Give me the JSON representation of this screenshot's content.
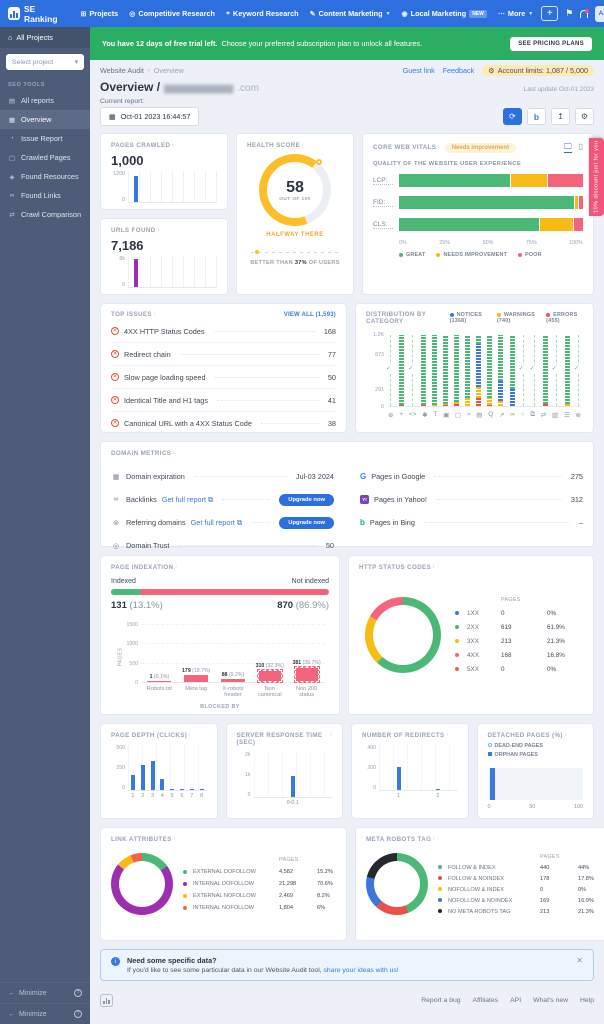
{
  "colors": {
    "green": "#4bb878",
    "yellow": "#f7bb17",
    "red": "#f4647d",
    "error": "#e8504a",
    "blue": "#3a78dd",
    "purple": "#9c2fb0",
    "orange": "#f06543",
    "black": "#25282e",
    "lightblue": "#7db4f0",
    "gauge_yellow": "#fdbe2a",
    "gray_track": "#ebeef2"
  },
  "navbar": {
    "brand": "SE Ranking",
    "items": [
      {
        "label": "Projects",
        "icon": "projects-icon",
        "glyph": "⊞"
      },
      {
        "label": "Competitive Research",
        "icon": "competitive-research-icon",
        "glyph": "◎"
      },
      {
        "label": "Keyword Research",
        "icon": "keyword-research-icon",
        "glyph": "⌖"
      },
      {
        "label": "Content Marketing",
        "icon": "content-marketing-icon",
        "glyph": "✎",
        "chevron": true
      },
      {
        "label": "Local Marketing",
        "icon": "local-marketing-icon",
        "glyph": "◉",
        "badge": "NEW"
      },
      {
        "label": "More",
        "icon": "more-icon",
        "glyph": "⋯",
        "chevron": true
      }
    ],
    "add_button": "+",
    "avatar": "AA"
  },
  "trial_banner": {
    "bold": "You have 12 days of free trial left.",
    "text": "Choose your preferred subscription plan to unlock all features.",
    "button": "SEE PRICING PLANS"
  },
  "sidebar": {
    "all_projects": "All Projects",
    "select_placeholder": "Select project",
    "section_title": "SEO TOOLS",
    "items": [
      {
        "label": "All reports",
        "glyph": "▤",
        "active": false
      },
      {
        "label": "Overview",
        "glyph": "▦",
        "active": true
      },
      {
        "label": "Issue Report",
        "glyph": "◔",
        "active": false
      },
      {
        "label": "Crawled Pages",
        "glyph": "▢",
        "active": false
      },
      {
        "label": "Found Resources",
        "glyph": "◈",
        "active": false
      },
      {
        "label": "Found Links",
        "glyph": "∞",
        "active": false
      },
      {
        "label": "Crawl Comparison",
        "glyph": "⇄",
        "active": false
      }
    ],
    "minimize_rows": [
      "Minimize",
      "Minimize"
    ]
  },
  "page": {
    "breadcrumb_parent": "Website Audit",
    "breadcrumb_current": "Overview",
    "guest_link": "Guest link",
    "feedback": "Feedback",
    "account_limits": "Account limits: 1,087 / 5,000",
    "title": "Overview /",
    "domain_masked": "▆▆▆▆▆▆▆▆▆",
    "domain_suffix": ".com",
    "last_update": "Last update Oct-01 2023",
    "current_report_label": "Current report:",
    "report_date": "Oct-01 2023 16:44:57"
  },
  "ribbon_text": "10% discount just for you",
  "cards": {
    "pages_crawled": {
      "title": "PAGES CRAWLED",
      "value": "1,000",
      "y_max": "1200",
      "y_min": "0",
      "bar_pct": 83,
      "bar_color": "blue"
    },
    "urls_found": {
      "title": "URLS FOUND",
      "value": "7,186",
      "y_max": "8k",
      "y_min": "0",
      "bar_pct": 90,
      "bar_color": "purple"
    },
    "health_score": {
      "title": "HEALTH SCORE",
      "score": "58",
      "out_of": "OUT OF 100",
      "status": "HALFWAY THERE",
      "note_pre": "BETTER THAN",
      "note_pct": "37%",
      "note_post": "OF USERS",
      "gauge_fill_pct": 66
    },
    "core_web_vitals": {
      "title": "CORE WEB VITALS",
      "badge": "Needs improvement",
      "subtitle": "QUALITY OF THE WEBSITE USER EXPERIENCE",
      "metrics": [
        {
          "label": "LCP:",
          "great": 61,
          "needs_improvement": 20,
          "poor": 19
        },
        {
          "label": "FID:",
          "great": 96,
          "needs_improvement": 2,
          "poor": 2
        },
        {
          "label": "CLS:",
          "great": 77,
          "needs_improvement": 18,
          "poor": 5
        }
      ],
      "x_ticks": [
        "0%",
        "25%",
        "50%",
        "75%",
        "100%"
      ],
      "legend": [
        {
          "label": "GREAT",
          "color": "green"
        },
        {
          "label": "NEEDS IMPROVEMENT",
          "color": "yellow"
        },
        {
          "label": "POOR",
          "color": "red"
        }
      ]
    },
    "top_issues": {
      "title": "TOP ISSUES",
      "view_all": "VIEW ALL (1,593)",
      "items": [
        {
          "name": "4XX HTTP Status Codes",
          "count": "168"
        },
        {
          "name": "Redirect chain",
          "count": "77"
        },
        {
          "name": "Slow page loading speed",
          "count": "50"
        },
        {
          "name": "Identical Title and H1 tags",
          "count": "41"
        },
        {
          "name": "Canonical URL with a 4XX Status Code",
          "count": "38"
        }
      ]
    },
    "distribution": {
      "title": "DISTRIBUTION BY CATEGORY",
      "legend": [
        {
          "label": "NOTICES (1368)",
          "color": "blue"
        },
        {
          "label": "WARNINGS (740)",
          "color": "yellow"
        },
        {
          "label": "ERRORS (455)",
          "color": "error"
        }
      ],
      "y_max": 1200,
      "y_ticks": [
        {
          "label": "1.2K",
          "v": 1200
        },
        {
          "label": "873",
          "v": 873
        },
        {
          "label": "291",
          "v": 291
        },
        {
          "label": "0",
          "v": 0
        }
      ],
      "bars": [
        {
          "check": true
        },
        {
          "segments": [
            [
              "error",
              25
            ],
            [
              "green",
              1175
            ]
          ]
        },
        {
          "check": true
        },
        {
          "segments": [
            [
              "error",
              25
            ],
            [
              "green",
              1175
            ]
          ]
        },
        {
          "segments": [
            [
              "yellow",
              25
            ],
            [
              "green",
              1175
            ]
          ]
        },
        {
          "segments": [
            [
              "error",
              20
            ],
            [
              "yellow",
              20
            ],
            [
              "green",
              1160
            ]
          ]
        },
        {
          "segments": [
            [
              "error",
              30
            ],
            [
              "yellow",
              40
            ],
            [
              "green",
              1130
            ]
          ]
        },
        {
          "segments": [
            [
              "yellow",
              130
            ],
            [
              "green",
              1070
            ]
          ]
        },
        {
          "segments": [
            [
              "error",
              140
            ],
            [
              "yellow",
              180
            ],
            [
              "blue",
              730
            ],
            [
              "green",
              150
            ]
          ]
        },
        {
          "segments": [
            [
              "error",
              25
            ],
            [
              "yellow",
              110
            ],
            [
              "green",
              1065
            ]
          ]
        },
        {
          "segments": [
            [
              "yellow",
              90
            ],
            [
              "blue",
              330
            ],
            [
              "green",
              780
            ]
          ]
        },
        {
          "segments": [
            [
              "blue",
              280
            ],
            [
              "green",
              920
            ]
          ]
        },
        {
          "check": true
        },
        {
          "check": true
        },
        {
          "segments": [
            [
              "error",
              40
            ],
            [
              "green",
              1160
            ]
          ]
        },
        {
          "check": true
        },
        {
          "segments": [
            [
              "yellow",
              30
            ],
            [
              "green",
              1170
            ]
          ]
        },
        {
          "check": true
        }
      ],
      "icons": [
        "⊕",
        "+",
        "<>",
        "✱",
        "T",
        "▣",
        "▢",
        "≈",
        "▤",
        "Q",
        "↗",
        "∞",
        "○",
        "⧉",
        "⇄",
        "▥",
        "☰",
        "⊗"
      ]
    },
    "domain_metrics": {
      "title": "DOMAIN METRICS",
      "left": [
        {
          "icon": "calendar-icon",
          "glyph": "▦",
          "label": "Domain expiration",
          "value": "Jul-03 2024"
        },
        {
          "icon": "backlinks-icon",
          "glyph": "∞",
          "label": "Backlinks",
          "link": "Get full report",
          "button": "Upgrade now"
        },
        {
          "icon": "referring-domains-icon",
          "glyph": "⊚",
          "label": "Referring domains",
          "link": "Get full report",
          "button": "Upgrade now"
        },
        {
          "icon": "domain-trust-icon",
          "glyph": "◎",
          "label": "Domain Trust",
          "value": "50"
        }
      ],
      "right": [
        {
          "icon": "google-icon",
          "glyph": "G",
          "cls": "g-google",
          "label": "Pages in Google",
          "value": "275"
        },
        {
          "icon": "yahoo-icon",
          "glyph": "Y!",
          "cls": "g-yahoo",
          "label": "Pages in Yahoo!",
          "value": "312"
        },
        {
          "icon": "bing-icon",
          "glyph": "b",
          "cls": "g-bing",
          "label": "Pages in Bing",
          "value": "–"
        }
      ]
    },
    "page_indexation": {
      "title": "PAGE INDEXATION",
      "indexed_label": "Indexed",
      "not_indexed_label": "Not indexed",
      "indexed_value": "131",
      "indexed_pct": "(13.1%)",
      "not_indexed_value": "870",
      "not_indexed_pct": "(86.9%)",
      "indexed_bar_pct": 13.1,
      "ylabel": "PAGES",
      "xlabel": "BLOCKED BY",
      "y_max": 1500,
      "y_ticks": [
        {
          "label": "1500",
          "v": 1500
        },
        {
          "label": "1000",
          "v": 1000
        },
        {
          "label": "500",
          "v": 500
        },
        {
          "label": "0",
          "v": 0
        }
      ],
      "bars": [
        {
          "label": "Robots.txt",
          "value": 1,
          "ann_bold": "1",
          "ann": "(0.1%)",
          "dashed": false
        },
        {
          "label": "Meta tag",
          "value": 179,
          "ann_bold": "179",
          "ann": "(18.7%)",
          "dashed": false
        },
        {
          "label": "X-robots header",
          "value": 88,
          "ann_bold": "88",
          "ann": "(9.2%)",
          "dashed": false
        },
        {
          "label": "Non canonical",
          "value": 310,
          "ann_bold": "310",
          "ann": "(32.3%)",
          "dashed": true
        },
        {
          "label": "Non 200 status",
          "value": 381,
          "ann_bold": "381",
          "ann": "(39.7%)",
          "dashed": true
        }
      ]
    },
    "http_status_codes": {
      "title": "HTTP STATUS CODES",
      "col_header": "PAGES",
      "rows": [
        {
          "label": "1XX",
          "color": "blue",
          "pages": "0",
          "pct": "0%",
          "value": 0
        },
        {
          "label": "2XX",
          "color": "green",
          "pages": "619",
          "pct": "61.9%",
          "value": 61.9
        },
        {
          "label": "3XX",
          "color": "yellow",
          "pages": "213",
          "pct": "21.3%",
          "value": 21.3
        },
        {
          "label": "4XX",
          "color": "red",
          "pages": "168",
          "pct": "16.8%",
          "value": 16.8
        },
        {
          "label": "5XX",
          "color": "orange",
          "pages": "0",
          "pct": "0%",
          "value": 0
        }
      ]
    },
    "page_depth": {
      "title": "PAGE DEPTH (CLICKS)",
      "y_ticks": [
        "500",
        "250",
        "0"
      ],
      "y_max": 500,
      "x_labels": [
        "1",
        "2",
        "3",
        "4",
        "5",
        "6",
        "7",
        "8"
      ],
      "values": [
        175,
        280,
        330,
        130,
        12,
        8,
        6,
        5
      ]
    },
    "server_response": {
      "title": "SERVER RESPONSE TIME (SEC)",
      "y_ticks": [
        "2k",
        "1k",
        "0"
      ],
      "y_max": 2000,
      "x_labels": [
        "0-0.1"
      ],
      "values": [
        950
      ]
    },
    "redirects": {
      "title": "NUMBER OF REDIRECTS",
      "y_ticks": [
        "400",
        "200",
        "0"
      ],
      "y_max": 400,
      "x_labels": [
        "1",
        "2"
      ],
      "values": [
        210,
        8
      ]
    },
    "detached_pages": {
      "title": "DETACHED PAGES (%)",
      "legend": [
        {
          "label": "DEAD-END PAGES",
          "style": "ring"
        },
        {
          "label": "ORPHAN PAGES",
          "style": "square"
        }
      ],
      "x_ticks": [
        "0",
        "50",
        "100"
      ],
      "bar_pct": 3
    },
    "link_attributes": {
      "title": "LINK ATTRIBUTES",
      "col_header": "PAGES",
      "rows": [
        {
          "label": "EXTERNAL DOFOLLOW",
          "color": "green",
          "pages": "4,582",
          "pct": "15.2%",
          "value": 15.2
        },
        {
          "label": "INTERNAL DOFOLLOW",
          "color": "purple",
          "pages": "21,298",
          "pct": "70.6%",
          "value": 70.6
        },
        {
          "label": "EXTERNAL NOFOLLOW",
          "color": "yellow",
          "pages": "2,469",
          "pct": "8.2%",
          "value": 8.2
        },
        {
          "label": "INTERNAL NOFOLLOW",
          "color": "orange",
          "pages": "1,804",
          "pct": "6%",
          "value": 6
        }
      ]
    },
    "meta_robots": {
      "title": "META ROBOTS TAG",
      "col_header": "PAGES",
      "rows": [
        {
          "label": "FOLLOW & INDEX",
          "color": "green",
          "pages": "440",
          "pct": "44%",
          "value": 44
        },
        {
          "label": "FOLLOW & NOINDEX",
          "color": "error",
          "pages": "178",
          "pct": "17.8%",
          "value": 17.8
        },
        {
          "label": "NOFOLLOW & INDEX",
          "color": "yellow",
          "pages": "0",
          "pct": "0%",
          "value": 0
        },
        {
          "label": "NOFOLLOW & NOINDEX",
          "color": "blue",
          "pages": "169",
          "pct": "16.9%",
          "value": 16.9
        },
        {
          "label": "NO META ROBOTS TAG",
          "color": "black",
          "pages": "213",
          "pct": "21.3%",
          "value": 21.3
        }
      ]
    }
  },
  "idea_banner": {
    "title": "Need some specific data?",
    "text": "If you'd like to see some particular data in our Website Audit tool, ",
    "link": "share your ideas with us!"
  },
  "footer": {
    "links": [
      "Report a bug",
      "Affiliates",
      "API",
      "What's new",
      "Help"
    ]
  }
}
